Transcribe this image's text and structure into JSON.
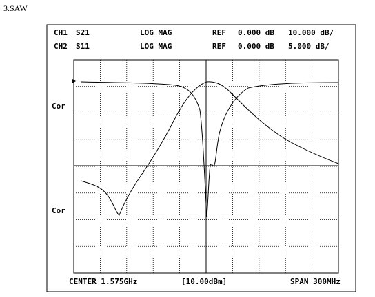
{
  "caption": "3.SAW",
  "header": {
    "rows": [
      [
        "CH1",
        "S21",
        "LOG MAG",
        "REF",
        "0.000 dB",
        "10.000 dB/"
      ],
      [
        "CH2",
        "S11",
        "LOG MAG",
        "REF",
        "0.000 dB",
        "5.000 dB/"
      ]
    ]
  },
  "side_labels": [
    "Cor",
    "Cor"
  ],
  "footer": {
    "center": "CENTER 1.575GHz",
    "power": "[10.00dBm]",
    "span": "SPAN 300MHz"
  }
}
